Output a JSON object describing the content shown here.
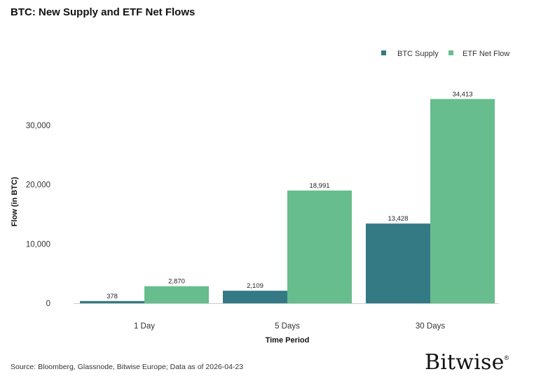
{
  "chart_data": {
    "type": "bar",
    "title": "BTC: New Supply and ETF Net Flows",
    "xlabel": "Time Period",
    "ylabel": "Flow (in BTC)",
    "categories": [
      "1 Day",
      "5 Days",
      "30 Days"
    ],
    "series": [
      {
        "name": "BTC Supply",
        "color": "#337a85",
        "values": [
          378,
          2109,
          13428
        ],
        "labels": [
          "378",
          "2,109",
          "13,428"
        ]
      },
      {
        "name": "ETF Net Flow",
        "color": "#67bd8d",
        "values": [
          2870,
          18991,
          34413
        ],
        "labels": [
          "2,870",
          "18,991",
          "34,413"
        ]
      }
    ],
    "yticks": [
      0,
      10000,
      20000,
      30000
    ],
    "ytick_labels": [
      "0",
      "10,000",
      "20,000",
      "30,000"
    ],
    "ylim": [
      0,
      38000
    ],
    "grid": false,
    "legend": "top-right"
  },
  "footer": {
    "source": "Source: Bloomberg, Glassnode, Bitwise Europe; Data as of 2026-04-23",
    "brand": "Bitwise",
    "brand_mark": "®"
  }
}
